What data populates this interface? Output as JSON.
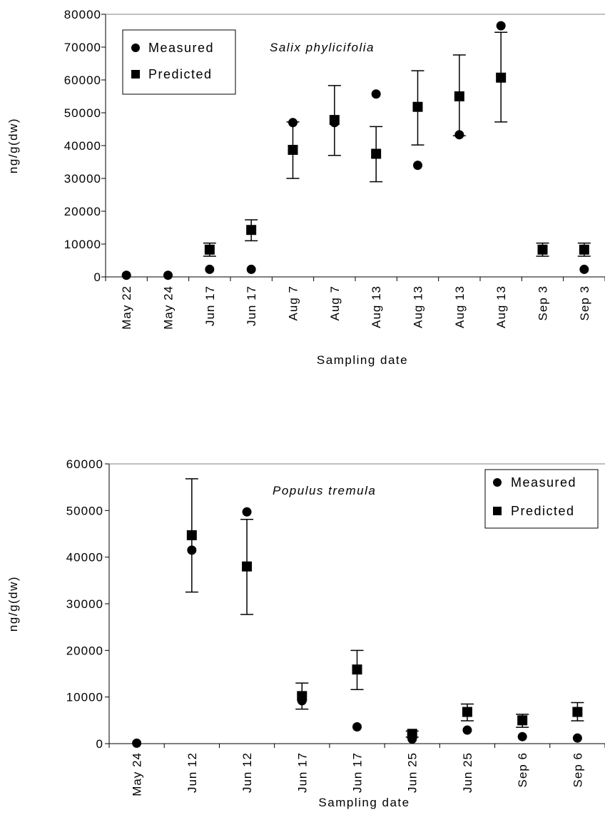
{
  "chart_data": [
    {
      "type": "scatter",
      "title": "Salix phylicifolia",
      "xlabel": "Sampling date",
      "ylabel": "ng/g(dw)",
      "ylim": [
        0,
        80000
      ],
      "yticks": [
        0,
        10000,
        20000,
        30000,
        40000,
        50000,
        60000,
        70000,
        80000
      ],
      "categories": [
        "May 22",
        "May 24",
        "Jun 17",
        "Jun 17",
        "Aug 7",
        "Aug 7",
        "Aug 13",
        "Aug 13",
        "Aug 13",
        "Aug 13",
        "Sep 3",
        "Sep 3"
      ],
      "legend": {
        "position": "top-left",
        "entries": [
          "Measured",
          "Predicted"
        ]
      },
      "grid": false,
      "series": [
        {
          "name": "Measured",
          "marker": "circle",
          "values": [
            500,
            500,
            2300,
            2300,
            47000,
            47000,
            55700,
            34000,
            43300,
            76500,
            null,
            2300
          ]
        },
        {
          "name": "Predicted",
          "marker": "square",
          "values": [
            null,
            null,
            8300,
            14300,
            38700,
            47800,
            37500,
            51800,
            55000,
            60700,
            8300,
            8300
          ],
          "error_low": [
            null,
            null,
            6300,
            11000,
            30000,
            37000,
            29000,
            40200,
            43000,
            47200,
            6300,
            6300
          ],
          "error_high": [
            null,
            null,
            10300,
            17400,
            47200,
            58300,
            45800,
            62800,
            67600,
            74500,
            10300,
            10300
          ]
        }
      ]
    },
    {
      "type": "scatter",
      "title": "Populus tremula",
      "xlabel": "Sampling date",
      "ylabel": "ng/g(dw)",
      "ylim": [
        0,
        60000
      ],
      "yticks": [
        0,
        10000,
        20000,
        30000,
        40000,
        50000,
        60000
      ],
      "categories": [
        "May 24",
        "Jun 12",
        "Jun 12",
        "Jun 17",
        "Jun 17",
        "Jun 25",
        "Jun 25",
        "Sep 6",
        "Sep 6"
      ],
      "legend": {
        "position": "top-right",
        "entries": [
          "Measured",
          "Predicted"
        ]
      },
      "grid": false,
      "series": [
        {
          "name": "Measured",
          "marker": "circle",
          "values": [
            100,
            41500,
            49700,
            9200,
            3600,
            1000,
            2900,
            1500,
            1200
          ]
        },
        {
          "name": "Predicted",
          "marker": "square",
          "values": [
            null,
            44700,
            38000,
            10200,
            15900,
            2100,
            6800,
            5000,
            6800
          ],
          "error_low": [
            null,
            32500,
            27700,
            7400,
            11600,
            1400,
            4900,
            3500,
            4900
          ],
          "error_high": [
            null,
            56800,
            48100,
            13000,
            20000,
            2700,
            8500,
            6300,
            8800
          ]
        }
      ]
    }
  ]
}
